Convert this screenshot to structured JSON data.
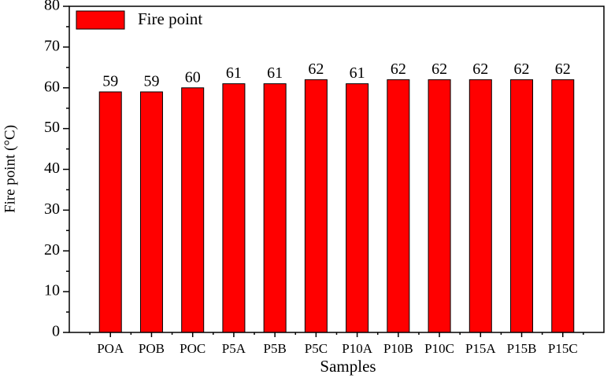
{
  "chart_data": {
    "type": "bar",
    "x_label": "Samples",
    "y_label": "Fire point (°C)",
    "categories": [
      "POA",
      "POB",
      "POC",
      "P5A",
      "P5B",
      "P5C",
      "P10A",
      "P10B",
      "P10C",
      "P15A",
      "P15B",
      "P15C"
    ],
    "series": [
      {
        "name": "Fire point",
        "color": "#ff0000",
        "values": [
          59,
          59,
          60,
          61,
          61,
          62,
          61,
          62,
          62,
          62,
          62,
          62
        ]
      }
    ],
    "ylim": [
      0,
      80
    ],
    "yticks": [
      0,
      10,
      20,
      30,
      40,
      50,
      60,
      70,
      80
    ],
    "legend": "top-left",
    "data_labels": true
  }
}
